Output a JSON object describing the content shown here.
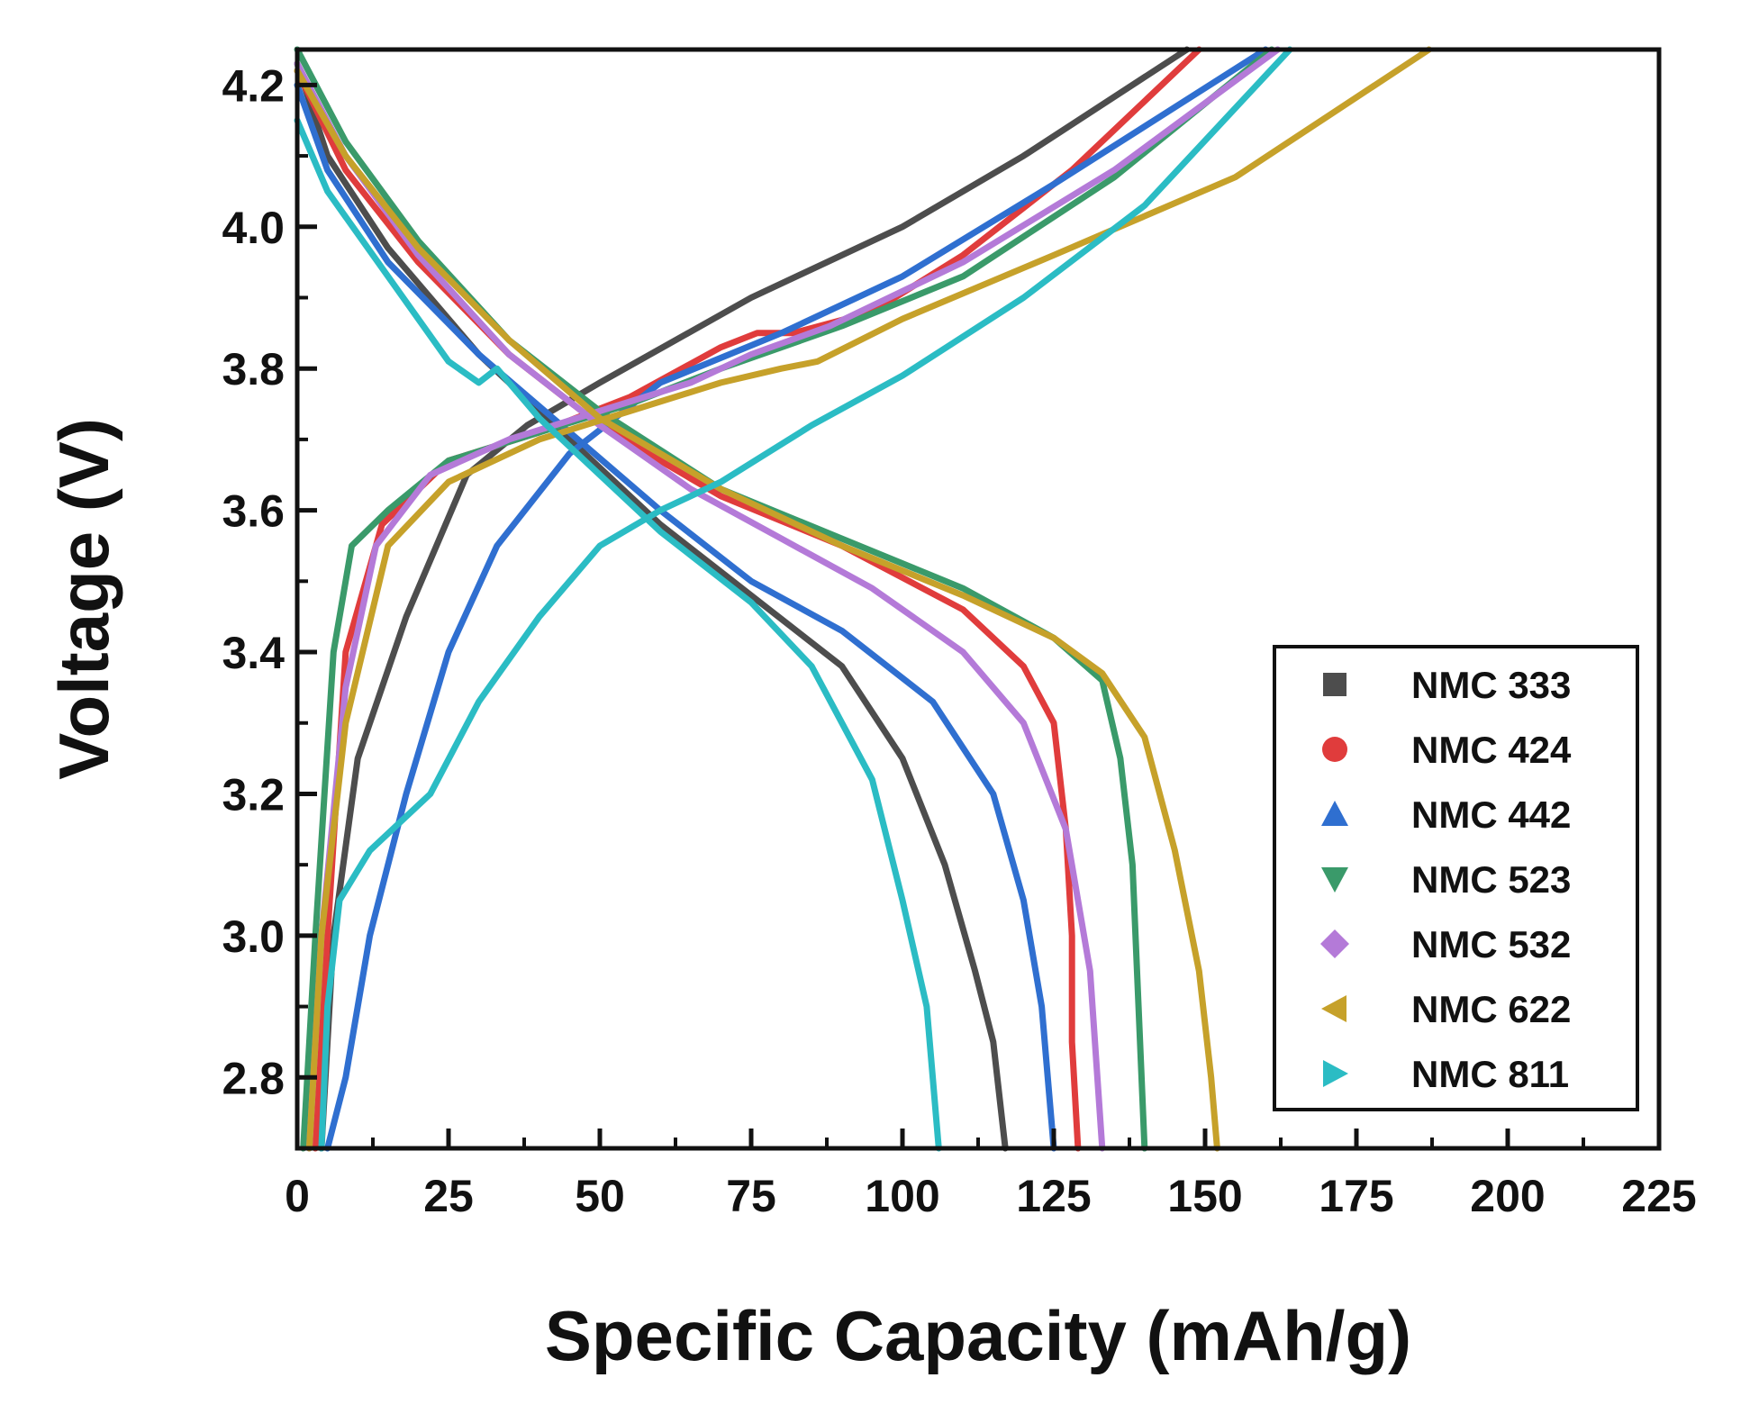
{
  "chart_data": {
    "type": "line",
    "title": "",
    "xlabel": "Specific Capacity (mAh/g)",
    "ylabel": "Voltage (V)",
    "xlim": [
      0,
      225
    ],
    "ylim": [
      2.7,
      4.25
    ],
    "x_ticks": [
      0,
      25,
      50,
      75,
      100,
      125,
      150,
      175,
      200,
      225
    ],
    "x_tick_labels": [
      "0",
      "25",
      "50",
      "75",
      "100",
      "125",
      "150",
      "175",
      "200",
      "225"
    ],
    "y_ticks": [
      2.8,
      3.0,
      3.2,
      3.4,
      3.6,
      3.8,
      4.0,
      4.2
    ],
    "y_tick_labels": [
      "2.8",
      "3.0",
      "3.2",
      "3.4",
      "3.6",
      "3.8",
      "4.0",
      "4.2"
    ],
    "grid": false,
    "legend_position": "bottom-right",
    "series": [
      {
        "name": "NMC 333",
        "color": "#4d4d4d",
        "marker": "square",
        "charge": [
          [
            4,
            2.7
          ],
          [
            6,
            3.0
          ],
          [
            10,
            3.25
          ],
          [
            18,
            3.45
          ],
          [
            28,
            3.65
          ],
          [
            38,
            3.72
          ],
          [
            50,
            3.78
          ],
          [
            75,
            3.9
          ],
          [
            100,
            4.0
          ],
          [
            120,
            4.1
          ],
          [
            147,
            4.25
          ]
        ],
        "discharge": [
          [
            0,
            4.23
          ],
          [
            5,
            4.1
          ],
          [
            15,
            3.97
          ],
          [
            30,
            3.82
          ],
          [
            45,
            3.7
          ],
          [
            60,
            3.58
          ],
          [
            75,
            3.48
          ],
          [
            90,
            3.38
          ],
          [
            100,
            3.25
          ],
          [
            107,
            3.1
          ],
          [
            112,
            2.95
          ],
          [
            115,
            2.85
          ],
          [
            117,
            2.7
          ]
        ]
      },
      {
        "name": "NMC 424",
        "color": "#e03c3c",
        "marker": "circle",
        "charge": [
          [
            3,
            2.7
          ],
          [
            5,
            3.0
          ],
          [
            8,
            3.4
          ],
          [
            14,
            3.58
          ],
          [
            25,
            3.67
          ],
          [
            40,
            3.71
          ],
          [
            55,
            3.76
          ],
          [
            70,
            3.83
          ],
          [
            76,
            3.85
          ],
          [
            82,
            3.85
          ],
          [
            95,
            3.88
          ],
          [
            110,
            3.96
          ],
          [
            128,
            4.08
          ],
          [
            149,
            4.25
          ]
        ],
        "discharge": [
          [
            0,
            4.22
          ],
          [
            8,
            4.08
          ],
          [
            20,
            3.95
          ],
          [
            35,
            3.82
          ],
          [
            50,
            3.72
          ],
          [
            70,
            3.62
          ],
          [
            90,
            3.55
          ],
          [
            110,
            3.46
          ],
          [
            120,
            3.38
          ],
          [
            125,
            3.3
          ],
          [
            127,
            3.15
          ],
          [
            128,
            3.0
          ],
          [
            128,
            2.85
          ],
          [
            129,
            2.7
          ]
        ]
      },
      {
        "name": "NMC 442",
        "color": "#2f6fd0",
        "marker": "triangle-up",
        "charge": [
          [
            5,
            2.7
          ],
          [
            8,
            2.8
          ],
          [
            12,
            3.0
          ],
          [
            18,
            3.2
          ],
          [
            25,
            3.4
          ],
          [
            33,
            3.55
          ],
          [
            45,
            3.68
          ],
          [
            60,
            3.78
          ],
          [
            80,
            3.85
          ],
          [
            100,
            3.93
          ],
          [
            125,
            4.06
          ],
          [
            160,
            4.25
          ]
        ],
        "discharge": [
          [
            0,
            4.2
          ],
          [
            5,
            4.08
          ],
          [
            15,
            3.95
          ],
          [
            30,
            3.82
          ],
          [
            45,
            3.71
          ],
          [
            60,
            3.6
          ],
          [
            75,
            3.5
          ],
          [
            90,
            3.43
          ],
          [
            105,
            3.33
          ],
          [
            115,
            3.2
          ],
          [
            120,
            3.05
          ],
          [
            123,
            2.9
          ],
          [
            125,
            2.7
          ]
        ]
      },
      {
        "name": "NMC 523",
        "color": "#3a9a6a",
        "marker": "triangle-down",
        "charge": [
          [
            1,
            2.7
          ],
          [
            3,
            3.0
          ],
          [
            6,
            3.4
          ],
          [
            9,
            3.55
          ],
          [
            15,
            3.6
          ],
          [
            25,
            3.67
          ],
          [
            40,
            3.71
          ],
          [
            55,
            3.75
          ],
          [
            70,
            3.8
          ],
          [
            90,
            3.86
          ],
          [
            110,
            3.93
          ],
          [
            135,
            4.07
          ],
          [
            161,
            4.25
          ]
        ],
        "discharge": [
          [
            0,
            4.25
          ],
          [
            8,
            4.12
          ],
          [
            20,
            3.98
          ],
          [
            35,
            3.84
          ],
          [
            50,
            3.74
          ],
          [
            70,
            3.63
          ],
          [
            90,
            3.56
          ],
          [
            110,
            3.49
          ],
          [
            125,
            3.42
          ],
          [
            133,
            3.36
          ],
          [
            136,
            3.25
          ],
          [
            138,
            3.1
          ],
          [
            139,
            2.9
          ],
          [
            140,
            2.7
          ]
        ]
      },
      {
        "name": "NMC 532",
        "color": "#b47ad8",
        "marker": "diamond",
        "charge": [
          [
            2,
            2.7
          ],
          [
            4,
            3.0
          ],
          [
            8,
            3.35
          ],
          [
            13,
            3.55
          ],
          [
            22,
            3.65
          ],
          [
            35,
            3.7
          ],
          [
            50,
            3.74
          ],
          [
            65,
            3.78
          ],
          [
            75,
            3.82
          ],
          [
            88,
            3.86
          ],
          [
            110,
            3.95
          ],
          [
            135,
            4.08
          ],
          [
            162,
            4.25
          ]
        ],
        "discharge": [
          [
            0,
            4.23
          ],
          [
            8,
            4.1
          ],
          [
            20,
            3.96
          ],
          [
            35,
            3.82
          ],
          [
            50,
            3.72
          ],
          [
            65,
            3.63
          ],
          [
            80,
            3.56
          ],
          [
            95,
            3.49
          ],
          [
            110,
            3.4
          ],
          [
            120,
            3.3
          ],
          [
            127,
            3.15
          ],
          [
            131,
            2.95
          ],
          [
            133,
            2.7
          ]
        ]
      },
      {
        "name": "NMC 622",
        "color": "#c6a12a",
        "marker": "triangle-left",
        "charge": [
          [
            2,
            2.7
          ],
          [
            4,
            3.0
          ],
          [
            8,
            3.3
          ],
          [
            15,
            3.55
          ],
          [
            25,
            3.64
          ],
          [
            40,
            3.7
          ],
          [
            55,
            3.74
          ],
          [
            70,
            3.78
          ],
          [
            80,
            3.8
          ],
          [
            86,
            3.81
          ],
          [
            100,
            3.87
          ],
          [
            125,
            3.96
          ],
          [
            155,
            4.07
          ],
          [
            187,
            4.25
          ]
        ],
        "discharge": [
          [
            0,
            4.22
          ],
          [
            8,
            4.1
          ],
          [
            20,
            3.97
          ],
          [
            35,
            3.84
          ],
          [
            50,
            3.73
          ],
          [
            70,
            3.63
          ],
          [
            90,
            3.55
          ],
          [
            110,
            3.48
          ],
          [
            125,
            3.42
          ],
          [
            133,
            3.37
          ],
          [
            140,
            3.28
          ],
          [
            145,
            3.12
          ],
          [
            149,
            2.95
          ],
          [
            151,
            2.8
          ],
          [
            152,
            2.7
          ]
        ]
      },
      {
        "name": "NMC 811",
        "color": "#2bbcc4",
        "marker": "triangle-right",
        "charge": [
          [
            4,
            2.7
          ],
          [
            5,
            2.9
          ],
          [
            7,
            3.05
          ],
          [
            12,
            3.12
          ],
          [
            22,
            3.2
          ],
          [
            30,
            3.33
          ],
          [
            40,
            3.45
          ],
          [
            50,
            3.55
          ],
          [
            60,
            3.6
          ],
          [
            70,
            3.64
          ],
          [
            85,
            3.72
          ],
          [
            100,
            3.79
          ],
          [
            120,
            3.9
          ],
          [
            140,
            4.03
          ],
          [
            164,
            4.25
          ]
        ],
        "discharge": [
          [
            0,
            4.15
          ],
          [
            5,
            4.05
          ],
          [
            15,
            3.93
          ],
          [
            25,
            3.81
          ],
          [
            30,
            3.78
          ],
          [
            33,
            3.8
          ],
          [
            40,
            3.73
          ],
          [
            50,
            3.65
          ],
          [
            60,
            3.57
          ],
          [
            75,
            3.47
          ],
          [
            85,
            3.38
          ],
          [
            95,
            3.22
          ],
          [
            100,
            3.05
          ],
          [
            104,
            2.9
          ],
          [
            106,
            2.7
          ]
        ]
      }
    ]
  }
}
